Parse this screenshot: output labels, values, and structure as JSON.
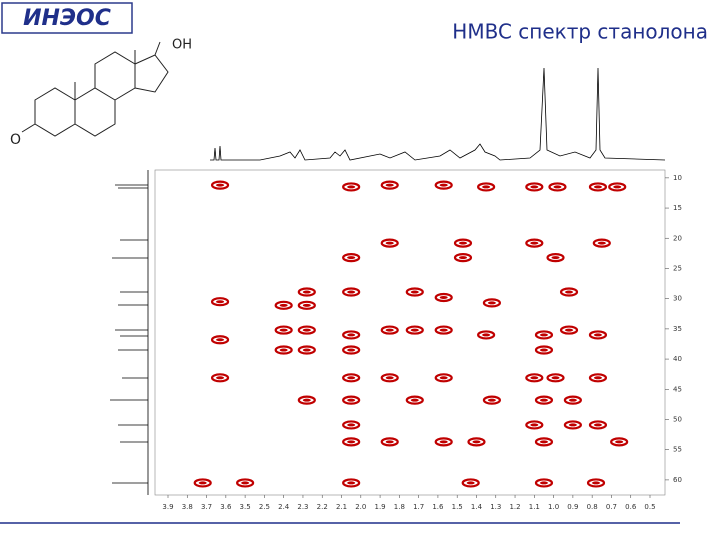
{
  "logo": "ИНЭОС",
  "molecule": {
    "labels": [
      "OH",
      "O"
    ]
  },
  "chart_data": {
    "type": "scatter",
    "title": "HMBC спектр станолона",
    "color": "#c00000",
    "x": [
      3.63,
      3.63,
      3.63,
      3.63,
      3.72,
      3.5,
      2.4,
      2.4,
      2.4,
      2.28,
      2.28,
      2.28,
      2.28,
      2.28,
      2.05,
      2.05,
      2.05,
      2.05,
      2.05,
      2.05,
      2.05,
      2.05,
      2.05,
      2.05,
      1.85,
      1.85,
      1.85,
      1.85,
      1.85,
      1.72,
      1.72,
      1.72,
      1.57,
      1.57,
      1.57,
      1.57,
      1.57,
      1.47,
      1.47,
      1.35,
      1.32,
      1.35,
      1.32,
      1.4,
      1.43,
      1.1,
      1.1,
      1.1,
      1.1,
      1.05,
      1.05,
      1.05,
      1.05,
      1.05,
      0.98,
      0.99,
      0.92,
      0.92,
      0.99,
      0.9,
      0.9,
      0.77,
      0.75,
      0.77,
      0.77,
      0.77,
      0.78,
      0.67,
      0.66
    ],
    "values": [
      11.2,
      30.5,
      36.8,
      43.1,
      60.5,
      60.5,
      31.1,
      35.2,
      38.5,
      31.1,
      35.2,
      38.5,
      46.8,
      28.9,
      11.5,
      23.2,
      28.9,
      36.0,
      38.5,
      43.1,
      46.8,
      50.9,
      53.7,
      60.5,
      11.2,
      20.8,
      35.2,
      43.1,
      53.7,
      28.9,
      35.2,
      46.8,
      11.2,
      29.8,
      35.2,
      43.1,
      53.7,
      20.8,
      23.2,
      11.5,
      30.7,
      36.0,
      46.8,
      53.7,
      60.5,
      11.5,
      20.8,
      43.1,
      50.9,
      36.0,
      38.5,
      46.8,
      53.7,
      60.5,
      11.5,
      23.2,
      28.9,
      35.2,
      43.1,
      46.8,
      50.9,
      11.5,
      20.8,
      36.0,
      43.1,
      50.9,
      60.5,
      11.5,
      53.7
    ],
    "xticks": [
      3.9,
      3.8,
      3.7,
      3.6,
      3.5,
      2.5,
      2.4,
      2.3,
      2.2,
      2.1,
      {
        "value": 2.0,
        "label": "2.0"
      },
      1.9,
      1.8,
      1.7,
      1.6,
      1.5,
      1.4,
      1.3,
      1.2,
      1.1,
      {
        "value": 1.0,
        "label": "1.0"
      },
      0.9,
      0.8,
      0.7,
      0.6,
      0.5
    ],
    "ylim": [
      8.7,
      62.5
    ],
    "yticks": [
      10,
      15,
      20,
      25,
      30,
      35,
      40,
      45,
      50,
      55,
      60
    ]
  }
}
